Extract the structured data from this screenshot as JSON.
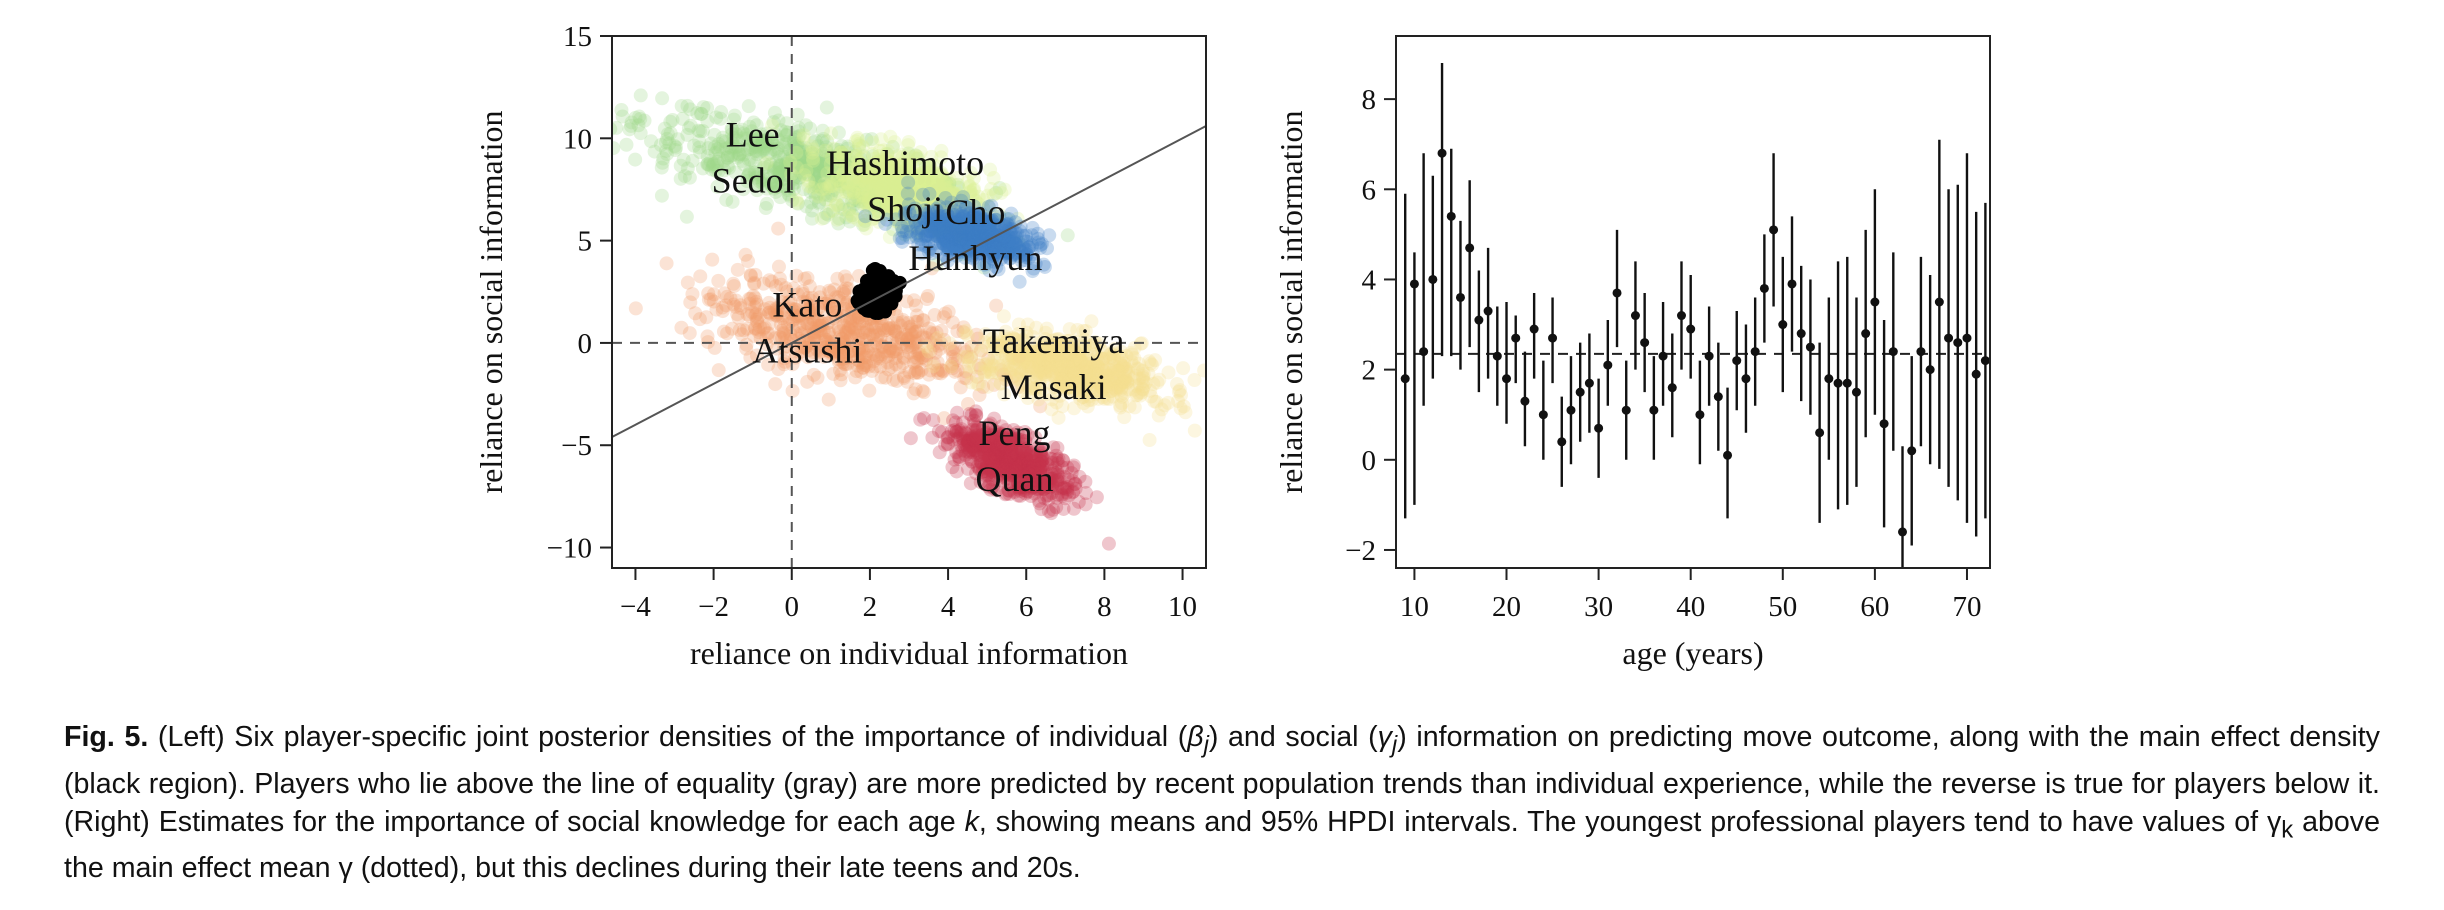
{
  "chart_data": [
    {
      "type": "scatter",
      "xlabel": "reliance on individual information",
      "ylabel": "reliance on social information",
      "xlim": [
        -4.6,
        10.6
      ],
      "ylim": [
        -11,
        15
      ],
      "xticks": [
        -4,
        -2,
        0,
        2,
        4,
        6,
        8,
        10
      ],
      "yticks": [
        -10,
        -5,
        0,
        5,
        10,
        15
      ],
      "xtick_labels": [
        "−4",
        "−2",
        "0",
        "2",
        "4",
        "6",
        "8",
        "10"
      ],
      "ytick_labels": [
        "−10",
        "−5",
        "0",
        "5",
        "10",
        "15"
      ],
      "reference_lines": {
        "vertical_dashed_x": 0,
        "horizontal_dashed_y": 0,
        "equality_line": {
          "slope": 1,
          "intercept": 0
        }
      },
      "series": [
        {
          "label_lines": [
            "Lee",
            "Sedol"
          ],
          "color": "#9fd68a",
          "center": [
            0.3,
            8.5
          ],
          "direction": [
            1.0,
            -0.6
          ],
          "spread": [
            4.3,
            1.6
          ]
        },
        {
          "label_lines": [
            "Hashimoto",
            "Shoji"
          ],
          "color": "#dcef94",
          "center": [
            2.8,
            7.5
          ],
          "direction": [
            1.0,
            -0.9
          ],
          "spread": [
            2.2,
            1.4
          ]
        },
        {
          "label_lines": [
            "Cho",
            "Hunhyun"
          ],
          "color": "#3e7fc4",
          "center": [
            4.6,
            5.3
          ],
          "direction": [
            1.0,
            -0.7
          ],
          "spread": [
            1.5,
            1.0
          ]
        },
        {
          "label_lines": [
            "Kato",
            "Atsushi"
          ],
          "color": "#f09968",
          "center": [
            1.3,
            0.6
          ],
          "direction": [
            1.0,
            -0.5
          ],
          "spread": [
            3.4,
            1.9
          ]
        },
        {
          "label_lines": [
            "Takemiya",
            "Masaki"
          ],
          "color": "#f6de8e",
          "center": [
            7.1,
            -1.3
          ],
          "direction": [
            1.0,
            -0.5
          ],
          "spread": [
            2.4,
            1.3
          ]
        },
        {
          "label_lines": [
            "Peng",
            "Quan"
          ],
          "color": "#c4334a",
          "center": [
            5.6,
            -5.8
          ],
          "direction": [
            1.0,
            -1.3
          ],
          "spread": [
            2.0,
            0.9
          ]
        }
      ],
      "main_effect": {
        "color": "#000000",
        "center": [
          2.2,
          2.4
        ],
        "spread": [
          0.4,
          0.8
        ]
      }
    },
    {
      "type": "errorbar",
      "xlabel": "age (years)",
      "ylabel": "reliance on social information",
      "xlim": [
        8,
        72.5
      ],
      "ylim": [
        -2.4,
        9.4
      ],
      "xticks": [
        10,
        20,
        30,
        40,
        50,
        60,
        70
      ],
      "yticks": [
        -2,
        0,
        2,
        4,
        6,
        8
      ],
      "xtick_labels": [
        "10",
        "20",
        "30",
        "40",
        "50",
        "60",
        "70"
      ],
      "ytick_labels": [
        "−2",
        "0",
        "2",
        "4",
        "6",
        "8"
      ],
      "main_effect_mean": 2.35,
      "points": [
        {
          "x": 9,
          "y": 1.8,
          "lo": -1.3,
          "hi": 5.9
        },
        {
          "x": 10,
          "y": 3.9,
          "lo": -1.0,
          "hi": 4.6
        },
        {
          "x": 11,
          "y": 2.4,
          "lo": 1.2,
          "hi": 6.8
        },
        {
          "x": 12,
          "y": 4.0,
          "lo": 1.8,
          "hi": 6.3
        },
        {
          "x": 13,
          "y": 6.8,
          "lo": 2.3,
          "hi": 8.8
        },
        {
          "x": 14,
          "y": 5.4,
          "lo": 2.3,
          "hi": 6.9
        },
        {
          "x": 15,
          "y": 3.6,
          "lo": 2.0,
          "hi": 5.3
        },
        {
          "x": 16,
          "y": 4.7,
          "lo": 2.5,
          "hi": 6.2
        },
        {
          "x": 17,
          "y": 3.1,
          "lo": 1.5,
          "hi": 4.2
        },
        {
          "x": 18,
          "y": 3.3,
          "lo": 1.8,
          "hi": 4.7
        },
        {
          "x": 19,
          "y": 2.3,
          "lo": 1.2,
          "hi": 3.4
        },
        {
          "x": 20,
          "y": 1.8,
          "lo": 0.8,
          "hi": 3.5
        },
        {
          "x": 21,
          "y": 2.7,
          "lo": 1.7,
          "hi": 3.2
        },
        {
          "x": 22,
          "y": 1.3,
          "lo": 0.3,
          "hi": 2.4
        },
        {
          "x": 23,
          "y": 2.9,
          "lo": 1.8,
          "hi": 3.7
        },
        {
          "x": 24,
          "y": 1.0,
          "lo": 0.0,
          "hi": 2.2
        },
        {
          "x": 25,
          "y": 2.7,
          "lo": 1.7,
          "hi": 3.6
        },
        {
          "x": 26,
          "y": 0.4,
          "lo": -0.6,
          "hi": 1.4
        },
        {
          "x": 27,
          "y": 1.1,
          "lo": -0.1,
          "hi": 2.3
        },
        {
          "x": 28,
          "y": 1.5,
          "lo": 0.4,
          "hi": 2.6
        },
        {
          "x": 29,
          "y": 1.7,
          "lo": 0.6,
          "hi": 2.8
        },
        {
          "x": 30,
          "y": 0.7,
          "lo": -0.4,
          "hi": 1.8
        },
        {
          "x": 31,
          "y": 2.1,
          "lo": 1.2,
          "hi": 3.1
        },
        {
          "x": 32,
          "y": 3.7,
          "lo": 2.5,
          "hi": 5.1
        },
        {
          "x": 33,
          "y": 1.1,
          "lo": 0.0,
          "hi": 2.2
        },
        {
          "x": 34,
          "y": 3.2,
          "lo": 2.0,
          "hi": 4.4
        },
        {
          "x": 35,
          "y": 2.6,
          "lo": 1.5,
          "hi": 3.7
        },
        {
          "x": 36,
          "y": 1.1,
          "lo": 0.0,
          "hi": 2.3
        },
        {
          "x": 37,
          "y": 2.3,
          "lo": 1.2,
          "hi": 3.5
        },
        {
          "x": 38,
          "y": 1.6,
          "lo": 0.5,
          "hi": 2.8
        },
        {
          "x": 39,
          "y": 3.2,
          "lo": 2.0,
          "hi": 4.4
        },
        {
          "x": 40,
          "y": 2.9,
          "lo": 1.8,
          "hi": 4.1
        },
        {
          "x": 41,
          "y": 1.0,
          "lo": -0.1,
          "hi": 2.2
        },
        {
          "x": 42,
          "y": 2.3,
          "lo": 1.2,
          "hi": 3.4
        },
        {
          "x": 43,
          "y": 1.4,
          "lo": 0.2,
          "hi": 2.6
        },
        {
          "x": 44,
          "y": 0.1,
          "lo": -1.3,
          "hi": 1.6
        },
        {
          "x": 45,
          "y": 2.2,
          "lo": 1.1,
          "hi": 3.3
        },
        {
          "x": 46,
          "y": 1.8,
          "lo": 0.6,
          "hi": 3.0
        },
        {
          "x": 47,
          "y": 2.4,
          "lo": 1.2,
          "hi": 3.6
        },
        {
          "x": 48,
          "y": 3.8,
          "lo": 2.6,
          "hi": 5.0
        },
        {
          "x": 49,
          "y": 5.1,
          "lo": 3.4,
          "hi": 6.8
        },
        {
          "x": 50,
          "y": 3.0,
          "lo": 1.5,
          "hi": 4.5
        },
        {
          "x": 51,
          "y": 3.9,
          "lo": 2.4,
          "hi": 5.4
        },
        {
          "x": 52,
          "y": 2.8,
          "lo": 1.3,
          "hi": 4.3
        },
        {
          "x": 53,
          "y": 2.5,
          "lo": 1.0,
          "hi": 4.0
        },
        {
          "x": 54,
          "y": 0.6,
          "lo": -1.4,
          "hi": 2.6
        },
        {
          "x": 55,
          "y": 1.8,
          "lo": 0.0,
          "hi": 3.6
        },
        {
          "x": 56,
          "y": 1.7,
          "lo": -1.1,
          "hi": 4.4
        },
        {
          "x": 57,
          "y": 1.7,
          "lo": -1.0,
          "hi": 4.5
        },
        {
          "x": 58,
          "y": 1.5,
          "lo": -0.6,
          "hi": 3.6
        },
        {
          "x": 59,
          "y": 2.8,
          "lo": 0.5,
          "hi": 5.1
        },
        {
          "x": 60,
          "y": 3.5,
          "lo": 1.0,
          "hi": 6.0
        },
        {
          "x": 61,
          "y": 0.8,
          "lo": -1.5,
          "hi": 3.1
        },
        {
          "x": 62,
          "y": 2.4,
          "lo": 0.2,
          "hi": 4.6
        },
        {
          "x": 63,
          "y": -1.6,
          "lo": -2.4,
          "hi": 0.3
        },
        {
          "x": 64,
          "y": 0.2,
          "lo": -1.9,
          "hi": 2.3
        },
        {
          "x": 65,
          "y": 2.4,
          "lo": 0.3,
          "hi": 4.5
        },
        {
          "x": 66,
          "y": 2.0,
          "lo": -0.1,
          "hi": 4.1
        },
        {
          "x": 67,
          "y": 3.5,
          "lo": -0.2,
          "hi": 7.1
        },
        {
          "x": 68,
          "y": 2.7,
          "lo": -0.6,
          "hi": 6.0
        },
        {
          "x": 69,
          "y": 2.6,
          "lo": -0.9,
          "hi": 6.1
        },
        {
          "x": 70,
          "y": 2.7,
          "lo": -1.4,
          "hi": 6.8
        },
        {
          "x": 71,
          "y": 1.9,
          "lo": -1.7,
          "hi": 5.5
        },
        {
          "x": 72,
          "y": 2.2,
          "lo": -1.3,
          "hi": 5.7
        }
      ]
    }
  ],
  "caption": {
    "fig_label": "Fig. 5.",
    "t1": " (Left) Six player-specific joint posterior densities of the importance of individual (",
    "beta": "β",
    "sub_j1": "j",
    "t2": ") and social (",
    "gamma": "γ",
    "sub_j2": "j",
    "t3": ") information on predicting move outcome, along with the main effect density (black region). Players who lie above the line of equality (gray) are more predicted by recent population trends than individual experience, while the reverse is true for players below it. (Right) Estimates for the importance of social knowledge for each age ",
    "k": "k",
    "t4": ", showing means and 95% HPDI intervals. The youngest professional players tend to have values of ",
    "gamma2": "γ",
    "sub_k": "k",
    "t5": " above the main effect mean ",
    "gamma3": "γ",
    "t6": " (dotted), but this declines during their late teens and 20s."
  }
}
